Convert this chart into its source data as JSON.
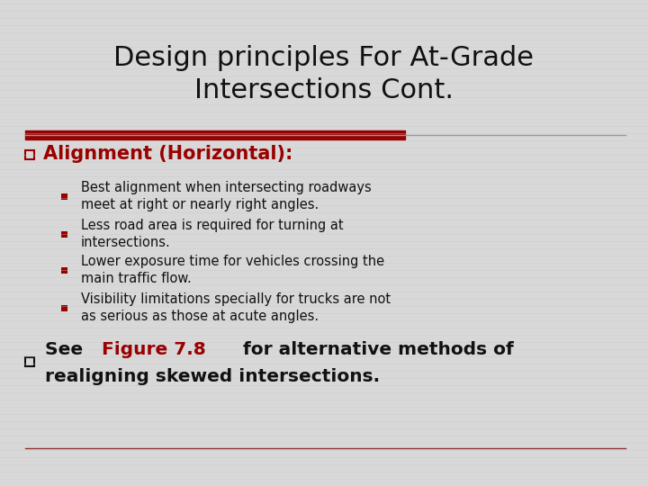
{
  "title_line1": "Design principles For At-Grade",
  "title_line2": "Intersections Cont.",
  "title_fontsize": 22,
  "title_color": "#111111",
  "bg_color": "#d8d8d8",
  "red_bar_color": "#990000",
  "red_text_color": "#990000",
  "black_text_color": "#111111",
  "bullet1_header": "Alignment (Horizontal):",
  "bullet1_header_fontsize": 15,
  "sub_bullets": [
    "Best alignment when intersecting roadways\nmeet at right or nearly right angles.",
    "Less road area is required for turning at\nintersections.",
    "Lower exposure time for vehicles crossing the\nmain traffic flow.",
    "Visibility limitations specially for trucks are not\nas serious as those at acute angles."
  ],
  "sub_bullet_fontsize": 10.5,
  "bullet2_fontsize": 14.5,
  "bottom_line_color": "#8B3333"
}
